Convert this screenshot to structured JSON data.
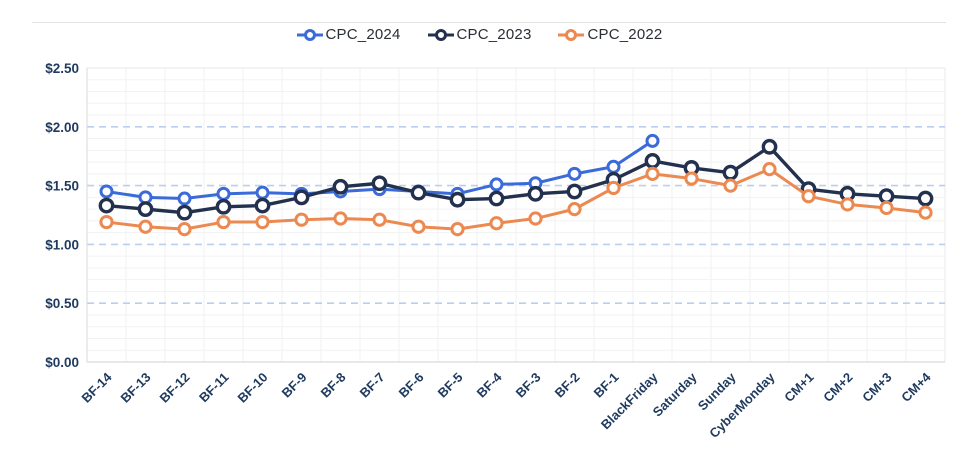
{
  "chart_data": {
    "type": "line",
    "title": "",
    "xlabel": "",
    "ylabel": "",
    "categories": [
      "BF-14",
      "BF-13",
      "BF-12",
      "BF-11",
      "BF-10",
      "BF-9",
      "BF-8",
      "BF-7",
      "BF-6",
      "BF-5",
      "BF-4",
      "BF-3",
      "BF-2",
      "BF-1",
      "BlackFriday",
      "Saturday",
      "Sunday",
      "CyberMonday",
      "CM+1",
      "CM+2",
      "CM+3",
      "CM+4"
    ],
    "series": [
      {
        "name": "CPC_2024",
        "color": "#3a6bd8",
        "values": [
          1.45,
          1.4,
          1.39,
          1.43,
          1.44,
          1.43,
          1.45,
          1.47,
          1.45,
          1.43,
          1.51,
          1.52,
          1.6,
          1.66,
          1.88,
          null,
          null,
          null,
          null,
          null,
          null,
          null
        ]
      },
      {
        "name": "CPC_2023",
        "color": "#23314e",
        "values": [
          1.33,
          1.3,
          1.27,
          1.32,
          1.33,
          1.4,
          1.49,
          1.52,
          1.44,
          1.38,
          1.39,
          1.43,
          1.45,
          1.55,
          1.71,
          1.65,
          1.61,
          1.83,
          1.47,
          1.43,
          1.41,
          1.39
        ]
      },
      {
        "name": "CPC_2022",
        "color": "#ec8950",
        "values": [
          1.19,
          1.15,
          1.13,
          1.19,
          1.19,
          1.21,
          1.22,
          1.21,
          1.15,
          1.13,
          1.18,
          1.22,
          1.3,
          1.48,
          1.6,
          1.56,
          1.5,
          1.64,
          1.41,
          1.34,
          1.31,
          1.27
        ]
      }
    ],
    "ylim": [
      0,
      2.5
    ],
    "y_tick_values": [
      0,
      0.5,
      1.0,
      1.5,
      2.0,
      2.5
    ],
    "y_tick_labels": [
      "$0.00",
      "$0.50",
      "$1.00",
      "$1.50",
      "$2.00",
      "$2.50"
    ],
    "legend_position": "top",
    "grid": {
      "major_horizontal": "dashed",
      "minor_horizontal_step": 0.1,
      "vertical_per_category": true
    },
    "colors": {
      "major_gridline": "#b9cfef",
      "minor_gridline": "#f2f2f2",
      "axis_line": "#d9d9d9",
      "plot_border": "#e8e8e8",
      "tick_label": "#1f3a5f",
      "legend_text": "#2a2e35",
      "background": "#ffffff"
    }
  }
}
